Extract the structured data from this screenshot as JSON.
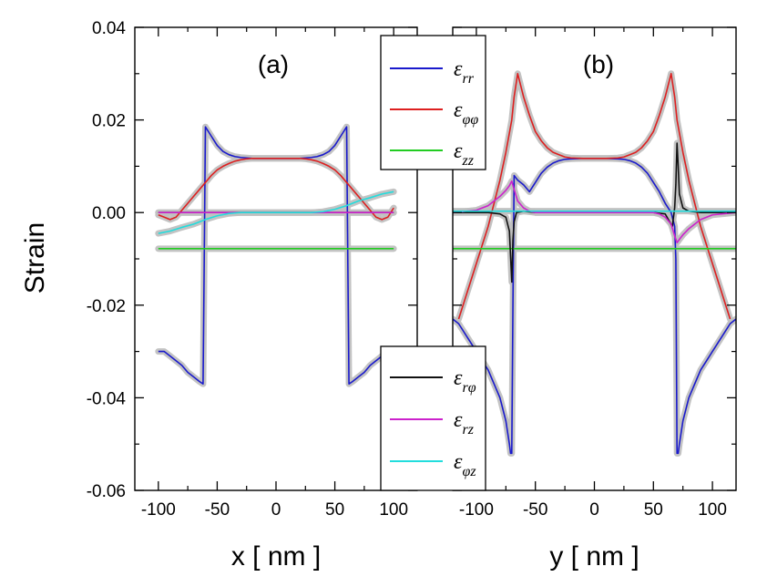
{
  "chart_data": [
    {
      "type": "line",
      "panel_label": "(a)",
      "xlabel": "x [ nm ]",
      "ylabel": "Strain",
      "xlim": [
        -120,
        120
      ],
      "ylim": [
        -0.06,
        0.04
      ],
      "xticks": [
        -100,
        -50,
        0,
        50,
        100
      ],
      "xtick_labels": [
        "-100",
        "-50",
        "0",
        "50",
        "100"
      ],
      "yticks": [
        -0.06,
        -0.04,
        -0.02,
        0.0,
        0.02,
        0.04
      ],
      "ytick_labels": [
        "-0.06",
        "-0.04",
        "-0.02",
        "0.00",
        "0.02",
        "0.04"
      ],
      "series": [
        {
          "name": "ε_rr",
          "color": "#1a1acc",
          "x": [
            -100,
            -95,
            -90,
            -85,
            -80,
            -75,
            -70,
            -65,
            -62,
            -61,
            -60,
            -55,
            -50,
            -45,
            -40,
            -35,
            -30,
            -25,
            -20,
            -10,
            0,
            10,
            20,
            25,
            30,
            35,
            40,
            45,
            50,
            55,
            60,
            61,
            62,
            65,
            70,
            75,
            80,
            85,
            90,
            95,
            100
          ],
          "y": [
            -0.03,
            -0.03,
            -0.031,
            -0.032,
            -0.033,
            -0.0345,
            -0.0355,
            -0.0365,
            -0.037,
            -0.01,
            0.0185,
            0.0165,
            0.0145,
            0.0132,
            0.0125,
            0.0121,
            0.0119,
            0.0118,
            0.0117,
            0.0117,
            0.0117,
            0.0117,
            0.0117,
            0.0118,
            0.0119,
            0.0121,
            0.0125,
            0.0132,
            0.0145,
            0.0165,
            0.0185,
            -0.01,
            -0.037,
            -0.0365,
            -0.0355,
            -0.0345,
            -0.033,
            -0.032,
            -0.031,
            -0.03,
            -0.03
          ]
        },
        {
          "name": "ε_φφ",
          "color": "#dd2020",
          "x": [
            -100,
            -95,
            -90,
            -85,
            -80,
            -75,
            -70,
            -65,
            -60,
            -55,
            -50,
            -45,
            -40,
            -35,
            -30,
            -25,
            -20,
            -10,
            0,
            10,
            20,
            25,
            30,
            35,
            40,
            45,
            50,
            55,
            60,
            65,
            70,
            75,
            80,
            85,
            90,
            95,
            100
          ],
          "y": [
            -0.0005,
            -0.001,
            -0.0015,
            -0.001,
            0.0005,
            0.002,
            0.0035,
            0.005,
            0.0065,
            0.008,
            0.0092,
            0.01,
            0.0106,
            0.0111,
            0.0114,
            0.0116,
            0.0117,
            0.0117,
            0.0117,
            0.0117,
            0.0117,
            0.0116,
            0.0114,
            0.0111,
            0.0106,
            0.01,
            0.0092,
            0.008,
            0.0065,
            0.005,
            0.0035,
            0.002,
            0.0005,
            -0.001,
            -0.0015,
            -0.001,
            0.001
          ]
        },
        {
          "name": "ε_zz",
          "color": "#22cc22",
          "x": [
            -100,
            100
          ],
          "y": [
            -0.0078,
            -0.0078
          ]
        },
        {
          "name": "ε_rφ",
          "color": "#111111",
          "x": [
            -100,
            100
          ],
          "y": [
            0.0,
            0.0
          ]
        },
        {
          "name": "ε_rz",
          "color": "#cc22cc",
          "x": [
            -100,
            100
          ],
          "y": [
            0.0,
            0.0
          ]
        },
        {
          "name": "ε_φz",
          "color": "#22dddd",
          "x": [
            -100,
            -90,
            -80,
            -70,
            -60,
            -50,
            -40,
            -30,
            -20,
            -10,
            0,
            10,
            20,
            30,
            40,
            50,
            60,
            70,
            80,
            90,
            100
          ],
          "y": [
            -0.0045,
            -0.004,
            -0.0032,
            -0.0025,
            -0.0015,
            -0.0007,
            -0.0002,
            0.0,
            0.0,
            0.0,
            0.0,
            0.0,
            0.0,
            0.0,
            0.0002,
            0.0007,
            0.0015,
            0.0025,
            0.0032,
            0.004,
            0.0045
          ]
        }
      ],
      "reference_series": {
        "color": "#c0c0c0",
        "description": "thick gray reference curves behind the colored lines"
      }
    },
    {
      "type": "line",
      "panel_label": "(b)",
      "xlabel": "y [ nm ]",
      "ylabel": "",
      "xlim": [
        -120,
        120
      ],
      "ylim": [
        -0.06,
        0.04
      ],
      "xticks": [
        -100,
        -50,
        0,
        50,
        100
      ],
      "xtick_labels": [
        "-100",
        "-50",
        "0",
        "50",
        "100"
      ],
      "series": [
        {
          "name": "ε_rr",
          "color": "#1a1acc",
          "x": [
            -120,
            -115,
            -110,
            -105,
            -100,
            -95,
            -90,
            -85,
            -80,
            -75,
            -72,
            -71,
            -70,
            -69,
            -68,
            -65,
            -60,
            -55,
            -50,
            -45,
            -40,
            -35,
            -30,
            -25,
            -20,
            -10,
            0,
            10,
            20,
            25,
            30,
            35,
            40,
            45,
            50,
            55,
            60,
            65,
            68,
            69,
            70,
            71,
            72,
            75,
            80,
            85,
            90,
            95,
            100,
            105,
            110,
            115,
            120
          ],
          "y": [
            -0.023,
            -0.024,
            -0.026,
            -0.028,
            -0.03,
            -0.032,
            -0.034,
            -0.037,
            -0.04,
            -0.045,
            -0.05,
            -0.052,
            -0.052,
            -0.02,
            0.008,
            0.007,
            0.006,
            0.0045,
            0.0065,
            0.0085,
            0.0098,
            0.0107,
            0.0112,
            0.0115,
            0.0116,
            0.0117,
            0.0117,
            0.0117,
            0.0116,
            0.0115,
            0.0112,
            0.0107,
            0.0098,
            0.0085,
            0.0065,
            0.0045,
            0.002,
            0.0,
            -0.003,
            -0.01,
            -0.052,
            -0.052,
            -0.05,
            -0.045,
            -0.04,
            -0.037,
            -0.034,
            -0.032,
            -0.03,
            -0.028,
            -0.026,
            -0.024,
            -0.023
          ]
        },
        {
          "name": "ε_φφ",
          "color": "#dd2020",
          "x": [
            -115,
            -110,
            -105,
            -100,
            -95,
            -90,
            -85,
            -80,
            -75,
            -70,
            -68,
            -65,
            -60,
            -55,
            -50,
            -45,
            -40,
            -35,
            -30,
            -25,
            -20,
            -10,
            0,
            10,
            20,
            25,
            30,
            35,
            40,
            45,
            50,
            55,
            60,
            65,
            68,
            70,
            75,
            80,
            85,
            90,
            95,
            100,
            105,
            110,
            115
          ],
          "y": [
            -0.023,
            -0.019,
            -0.015,
            -0.011,
            -0.007,
            -0.003,
            0.002,
            0.007,
            0.013,
            0.02,
            0.025,
            0.03,
            0.025,
            0.021,
            0.0175,
            0.0155,
            0.014,
            0.013,
            0.0125,
            0.012,
            0.0118,
            0.0117,
            0.0117,
            0.0117,
            0.0118,
            0.012,
            0.0125,
            0.013,
            0.014,
            0.0155,
            0.0175,
            0.021,
            0.025,
            0.03,
            0.025,
            0.02,
            0.013,
            0.007,
            0.002,
            -0.003,
            -0.007,
            -0.011,
            -0.015,
            -0.019,
            -0.023
          ]
        },
        {
          "name": "ε_zz",
          "color": "#22cc22",
          "x": [
            -120,
            120
          ],
          "y": [
            -0.0078,
            -0.0078
          ]
        },
        {
          "name": "ε_rφ",
          "color": "#111111",
          "x": [
            -120,
            -90,
            -80,
            -75,
            -72,
            -70,
            -69,
            -68,
            -66,
            -60,
            -50,
            0,
            50,
            60,
            66,
            68,
            69,
            70,
            71,
            72,
            75,
            80,
            90,
            120
          ],
          "y": [
            0.0,
            0.0,
            -0.0003,
            -0.001,
            -0.004,
            -0.015,
            -0.006,
            -0.002,
            0.0,
            0.0003,
            0.0,
            0.0,
            0.0,
            -0.0003,
            -0.003,
            0.001,
            0.006,
            0.015,
            0.01,
            0.004,
            0.001,
            0.0003,
            0.0,
            0.0
          ]
        },
        {
          "name": "ε_rz",
          "color": "#cc22cc",
          "x": [
            -120,
            -100,
            -90,
            -85,
            -80,
            -75,
            -72,
            -70,
            -68,
            -65,
            -60,
            -55,
            -50,
            -40,
            0,
            40,
            50,
            55,
            60,
            65,
            68,
            70,
            72,
            75,
            80,
            85,
            90,
            100,
            120
          ],
          "y": [
            0.0,
            0.0005,
            0.0015,
            0.0025,
            0.0035,
            0.0048,
            0.0058,
            0.0068,
            0.005,
            0.0025,
            0.001,
            0.0003,
            0.0,
            0.0,
            0.0,
            0.0,
            0.0,
            -0.0003,
            -0.001,
            -0.0025,
            -0.005,
            -0.0065,
            -0.0058,
            -0.0048,
            -0.0035,
            -0.0025,
            -0.0015,
            -0.0005,
            0.0
          ]
        },
        {
          "name": "ε_φz",
          "color": "#22dddd",
          "x": [
            -120,
            120
          ],
          "y": [
            0.0003,
            0.0003
          ]
        }
      ],
      "reference_series": {
        "color": "#c0c0c0",
        "description": "thick gray reference curves behind the colored lines"
      }
    }
  ],
  "legend_top": {
    "entries": [
      {
        "base": "ε",
        "sub": "rr",
        "color": "#1a1acc"
      },
      {
        "base": "ε",
        "sub": "φφ",
        "color": "#dd2020"
      },
      {
        "base": "ε",
        "sub": "zz",
        "color": "#22cc22"
      }
    ]
  },
  "legend_bottom": {
    "entries": [
      {
        "base": "ε",
        "sub": "rφ",
        "color": "#111111"
      },
      {
        "base": "ε",
        "sub": "rz",
        "color": "#cc22cc"
      },
      {
        "base": "ε",
        "sub": "φz",
        "color": "#22dddd"
      }
    ]
  }
}
